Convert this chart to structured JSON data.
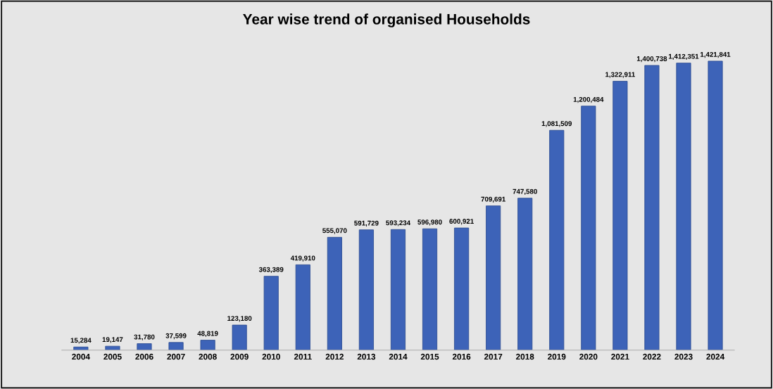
{
  "chart_data": {
    "type": "bar",
    "title": "Year wise trend of organised Households",
    "categories": [
      "2004",
      "2005",
      "2006",
      "2007",
      "2008",
      "2009",
      "2010",
      "2011",
      "2012",
      "2013",
      "2014",
      "2015",
      "2016",
      "2017",
      "2018",
      "2019",
      "2020",
      "2021",
      "2022",
      "2023",
      "2024"
    ],
    "values": [
      15284,
      19147,
      31780,
      37599,
      48819,
      123180,
      363389,
      419910,
      555070,
      591729,
      593234,
      596980,
      600921,
      709691,
      747580,
      1081509,
      1200484,
      1322911,
      1400738,
      1412351,
      1421841
    ],
    "color": "#3d63b8",
    "value_labels": [
      "15,284",
      "19,147",
      "31,780",
      "37,599",
      "48,819",
      "123,180",
      "363,389",
      "419,910",
      "555,070",
      "591,729",
      "593,234",
      "596,980",
      "600,921",
      "709,691",
      "747,580",
      "1,081,509",
      "1,200,484",
      "1,322,911",
      "1,400,738",
      "1,412,351",
      "1,421,841"
    ],
    "grid": false,
    "legend": false
  }
}
